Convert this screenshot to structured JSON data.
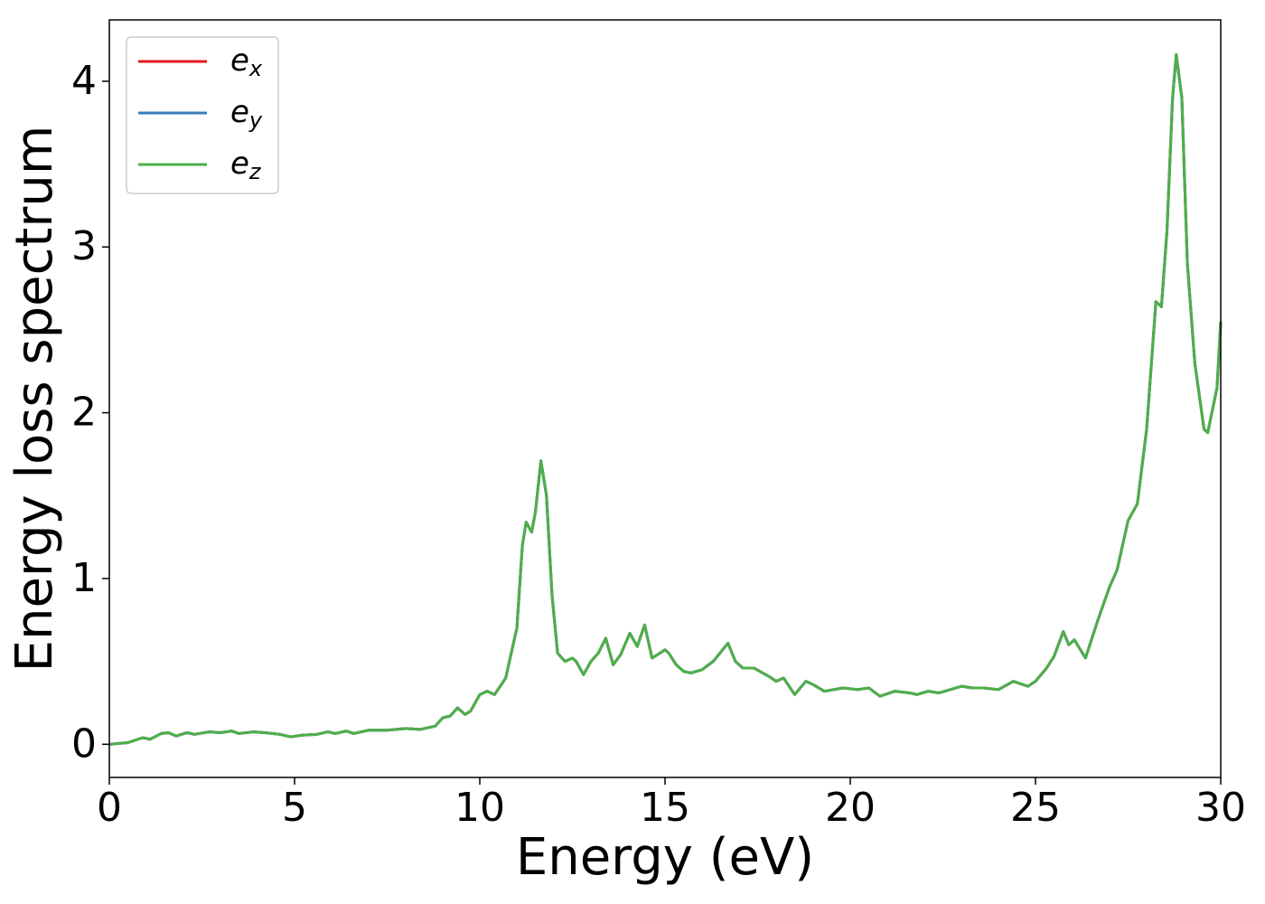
{
  "chart_data": {
    "type": "line",
    "xlabel": "Energy (eV)",
    "ylabel": "Energy loss spectrum",
    "xlim": [
      0,
      30
    ],
    "xticks": [
      0,
      5,
      10,
      15,
      20,
      25,
      30
    ],
    "ylim": [
      -0.2,
      4.37
    ],
    "yticks": [
      0,
      1,
      2,
      3,
      4
    ],
    "grid": false,
    "legend": "upper left",
    "x": [
      0,
      0.5,
      0.9,
      1.1,
      1.4,
      1.6,
      1.8,
      2.1,
      2.3,
      2.7,
      3,
      3.3,
      3.5,
      3.9,
      4.2,
      4.6,
      4.9,
      5.2,
      5.6,
      5.9,
      6.1,
      6.4,
      6.6,
      7,
      7.5,
      8,
      8.4,
      8.8,
      9,
      9.2,
      9.4,
      9.6,
      9.75,
      10,
      10.2,
      10.4,
      10.7,
      11,
      11.15,
      11.25,
      11.4,
      11.5,
      11.65,
      11.8,
      11.95,
      12.1,
      12.3,
      12.5,
      12.6,
      12.8,
      13,
      13.2,
      13.4,
      13.6,
      13.8,
      14.05,
      14.25,
      14.45,
      14.65,
      15,
      15.1,
      15.3,
      15.5,
      15.7,
      16,
      16.3,
      16.7,
      16.9,
      17.1,
      17.4,
      17.8,
      18,
      18.2,
      18.5,
      18.8,
      19,
      19.3,
      19.8,
      20.2,
      20.5,
      20.8,
      21.2,
      21.6,
      21.8,
      22.1,
      22.4,
      23,
      23.3,
      23.6,
      24,
      24.4,
      24.8,
      25,
      25.3,
      25.5,
      25.75,
      25.9,
      26.05,
      26.35,
      26.7,
      27,
      27.2,
      27.5,
      27.75,
      28,
      28.25,
      28.4,
      28.55,
      28.7,
      28.8,
      28.95,
      29.1,
      29.3,
      29.55,
      29.65,
      29.9,
      30
    ],
    "series": [
      {
        "name": "ex",
        "color": "#e41a1c",
        "values": [
          0,
          0.01,
          0.04,
          0.03,
          0.065,
          0.07,
          0.05,
          0.07,
          0.06,
          0.075,
          0.07,
          0.08,
          0.065,
          0.075,
          0.07,
          0.06,
          0.045,
          0.055,
          0.06,
          0.075,
          0.065,
          0.08,
          0.065,
          0.085,
          0.085,
          0.095,
          0.09,
          0.11,
          0.16,
          0.17,
          0.22,
          0.18,
          0.2,
          0.3,
          0.32,
          0.3,
          0.4,
          0.7,
          1.2,
          1.34,
          1.28,
          1.4,
          1.71,
          1.5,
          0.9,
          0.55,
          0.5,
          0.52,
          0.5,
          0.42,
          0.5,
          0.55,
          0.64,
          0.48,
          0.54,
          0.67,
          0.59,
          0.72,
          0.52,
          0.57,
          0.55,
          0.48,
          0.44,
          0.43,
          0.45,
          0.5,
          0.61,
          0.5,
          0.46,
          0.46,
          0.41,
          0.38,
          0.4,
          0.3,
          0.38,
          0.36,
          0.32,
          0.34,
          0.33,
          0.34,
          0.29,
          0.32,
          0.31,
          0.3,
          0.32,
          0.31,
          0.35,
          0.34,
          0.34,
          0.33,
          0.38,
          0.35,
          0.38,
          0.46,
          0.53,
          0.68,
          0.6,
          0.63,
          0.52,
          0.76,
          0.95,
          1.05,
          1.35,
          1.45,
          1.9,
          2.67,
          2.64,
          3.1,
          3.9,
          4.16,
          3.9,
          2.9,
          2.3,
          1.9,
          1.88,
          2.15,
          2.55
        ]
      },
      {
        "name": "ey",
        "color": "#377eb8",
        "values": [
          0,
          0.01,
          0.04,
          0.03,
          0.065,
          0.07,
          0.05,
          0.07,
          0.06,
          0.075,
          0.07,
          0.08,
          0.065,
          0.075,
          0.07,
          0.06,
          0.045,
          0.055,
          0.06,
          0.075,
          0.065,
          0.08,
          0.065,
          0.085,
          0.085,
          0.095,
          0.09,
          0.11,
          0.16,
          0.17,
          0.22,
          0.18,
          0.2,
          0.3,
          0.32,
          0.3,
          0.4,
          0.7,
          1.2,
          1.34,
          1.28,
          1.4,
          1.71,
          1.5,
          0.9,
          0.55,
          0.5,
          0.52,
          0.5,
          0.42,
          0.5,
          0.55,
          0.64,
          0.48,
          0.54,
          0.67,
          0.59,
          0.72,
          0.52,
          0.57,
          0.55,
          0.48,
          0.44,
          0.43,
          0.45,
          0.5,
          0.61,
          0.5,
          0.46,
          0.46,
          0.41,
          0.38,
          0.4,
          0.3,
          0.38,
          0.36,
          0.32,
          0.34,
          0.33,
          0.34,
          0.29,
          0.32,
          0.31,
          0.3,
          0.32,
          0.31,
          0.35,
          0.34,
          0.34,
          0.33,
          0.38,
          0.35,
          0.38,
          0.46,
          0.53,
          0.68,
          0.6,
          0.63,
          0.52,
          0.76,
          0.95,
          1.05,
          1.35,
          1.45,
          1.9,
          2.67,
          2.64,
          3.1,
          3.9,
          4.16,
          3.9,
          2.9,
          2.3,
          1.9,
          1.88,
          2.15,
          2.55
        ]
      },
      {
        "name": "ez",
        "color": "#4daf4a",
        "values": [
          0,
          0.01,
          0.04,
          0.03,
          0.065,
          0.07,
          0.05,
          0.07,
          0.06,
          0.075,
          0.07,
          0.08,
          0.065,
          0.075,
          0.07,
          0.06,
          0.045,
          0.055,
          0.06,
          0.075,
          0.065,
          0.08,
          0.065,
          0.085,
          0.085,
          0.095,
          0.09,
          0.11,
          0.16,
          0.17,
          0.22,
          0.18,
          0.2,
          0.3,
          0.32,
          0.3,
          0.4,
          0.7,
          1.2,
          1.34,
          1.28,
          1.4,
          1.71,
          1.5,
          0.9,
          0.55,
          0.5,
          0.52,
          0.5,
          0.42,
          0.5,
          0.55,
          0.64,
          0.48,
          0.54,
          0.67,
          0.59,
          0.72,
          0.52,
          0.57,
          0.55,
          0.48,
          0.44,
          0.43,
          0.45,
          0.5,
          0.61,
          0.5,
          0.46,
          0.46,
          0.41,
          0.38,
          0.4,
          0.3,
          0.38,
          0.36,
          0.32,
          0.34,
          0.33,
          0.34,
          0.29,
          0.32,
          0.31,
          0.3,
          0.32,
          0.31,
          0.35,
          0.34,
          0.34,
          0.33,
          0.38,
          0.35,
          0.38,
          0.46,
          0.53,
          0.68,
          0.6,
          0.63,
          0.52,
          0.76,
          0.95,
          1.05,
          1.35,
          1.45,
          1.9,
          2.67,
          2.64,
          3.1,
          3.9,
          4.16,
          3.9,
          2.9,
          2.3,
          1.9,
          1.88,
          2.15,
          2.55
        ]
      }
    ]
  }
}
